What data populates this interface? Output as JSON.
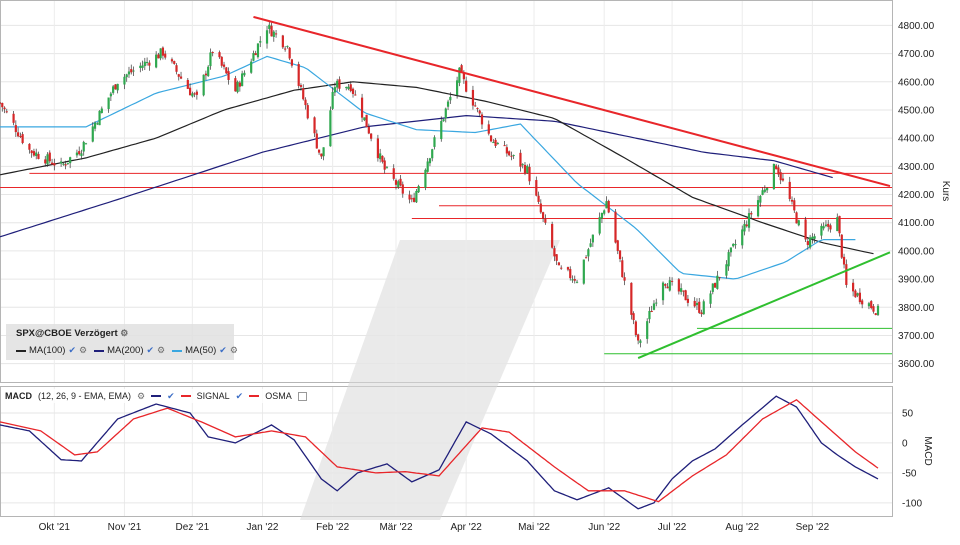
{
  "price_panel": {
    "instrument": "SPX@CBOE Verzögert",
    "axis_label": "Kurs",
    "ma_items": [
      {
        "label": "MA(100)",
        "color": "#222222"
      },
      {
        "label": "MA(200)",
        "color": "#1f1f7a"
      },
      {
        "label": "MA(50)",
        "color": "#3aa7e0"
      }
    ]
  },
  "macd_panel": {
    "label": "MACD",
    "params": "(12, 26, 9 - EMA, EMA)",
    "signal_label": "SIGNAL",
    "osma_label": "OSMA",
    "axis_label": "MACD"
  },
  "chart_data": [
    {
      "type": "candlestick",
      "ylim": [
        3535,
        4890
      ],
      "y_ticks": [
        3600,
        3700,
        3800,
        3900,
        4000,
        4100,
        4200,
        4300,
        4400,
        4500,
        4600,
        4700,
        4800
      ],
      "y_tick_labels": [
        "3600.00",
        "3700.00",
        "3800.00",
        "3900.00",
        "4000.00",
        "4100.00",
        "4200.00",
        "4300.00",
        "4400.00",
        "4500.00",
        "4600.00",
        "4700.00",
        "4800.00"
      ],
      "x_labels": [
        "Okt '21",
        "Nov '21",
        "Dez '21",
        "Jan '22",
        "Feb '22",
        "Mär '22",
        "Apr '22",
        "Mai '22",
        "Jun '22",
        "Jul '22",
        "Aug '22",
        "Sep '22"
      ],
      "x_label_dates": [
        "2021-10-01",
        "2021-11-01",
        "2021-12-01",
        "2022-01-01",
        "2022-02-01",
        "2022-03-01",
        "2022-04-01",
        "2022-05-01",
        "2022-06-01",
        "2022-07-01",
        "2022-08-01",
        "2022-09-01"
      ],
      "date_range": [
        "2021-09-07",
        "2022-09-30"
      ],
      "close_anchors": [
        [
          "2021-09-07",
          4525
        ],
        [
          "2021-09-20",
          4357
        ],
        [
          "2021-10-04",
          4300
        ],
        [
          "2021-10-13",
          4365
        ],
        [
          "2021-10-29",
          4605
        ],
        [
          "2021-11-18",
          4705
        ],
        [
          "2021-11-30",
          4567
        ],
        [
          "2021-12-03",
          4538
        ],
        [
          "2021-12-10",
          4712
        ],
        [
          "2021-12-20",
          4568
        ],
        [
          "2022-01-03",
          4796
        ],
        [
          "2022-01-12",
          4726
        ],
        [
          "2022-01-27",
          4326
        ],
        [
          "2022-02-02",
          4589
        ],
        [
          "2022-02-09",
          4587
        ],
        [
          "2022-02-24",
          4288
        ],
        [
          "2022-03-08",
          4170
        ],
        [
          "2022-03-29",
          4631
        ],
        [
          "2022-04-12",
          4397
        ],
        [
          "2022-04-28",
          4287
        ],
        [
          "2022-05-12",
          3930
        ],
        [
          "2022-05-20",
          3901
        ],
        [
          "2022-06-02",
          4176
        ],
        [
          "2022-06-16",
          3667
        ],
        [
          "2022-06-27",
          3900
        ],
        [
          "2022-07-14",
          3790
        ],
        [
          "2022-08-16",
          4305
        ],
        [
          "2022-08-29",
          4030
        ],
        [
          "2022-09-12",
          4110
        ],
        [
          "2022-09-16",
          3873
        ],
        [
          "2022-09-30",
          3786
        ]
      ],
      "ma50_anchors": [
        [
          "2021-09-07",
          4440
        ],
        [
          "2021-10-15",
          4440
        ],
        [
          "2021-11-15",
          4560
        ],
        [
          "2021-12-15",
          4620
        ],
        [
          "2022-01-03",
          4690
        ],
        [
          "2022-01-20",
          4650
        ],
        [
          "2022-02-15",
          4490
        ],
        [
          "2022-03-10",
          4430
        ],
        [
          "2022-04-05",
          4420
        ],
        [
          "2022-04-25",
          4450
        ],
        [
          "2022-05-20",
          4240
        ],
        [
          "2022-06-15",
          4080
        ],
        [
          "2022-07-05",
          3920
        ],
        [
          "2022-07-29",
          3900
        ],
        [
          "2022-08-20",
          3960
        ],
        [
          "2022-09-05",
          4040
        ],
        [
          "2022-09-20",
          4040
        ]
      ],
      "ma100_anchors": [
        [
          "2021-09-07",
          4270
        ],
        [
          "2021-10-15",
          4330
        ],
        [
          "2021-11-15",
          4400
        ],
        [
          "2021-12-15",
          4500
        ],
        [
          "2022-01-15",
          4570
        ],
        [
          "2022-02-10",
          4600
        ],
        [
          "2022-03-10",
          4580
        ],
        [
          "2022-04-10",
          4530
        ],
        [
          "2022-05-10",
          4470
        ],
        [
          "2022-06-10",
          4330
        ],
        [
          "2022-07-10",
          4190
        ],
        [
          "2022-08-10",
          4100
        ],
        [
          "2022-09-05",
          4030
        ],
        [
          "2022-09-28",
          3990
        ]
      ],
      "ma200_anchors": [
        [
          "2021-09-07",
          4050
        ],
        [
          "2021-11-01",
          4190
        ],
        [
          "2022-01-01",
          4350
        ],
        [
          "2022-02-15",
          4440
        ],
        [
          "2022-04-01",
          4480
        ],
        [
          "2022-05-10",
          4460
        ],
        [
          "2022-06-15",
          4400
        ],
        [
          "2022-07-15",
          4350
        ],
        [
          "2022-08-15",
          4320
        ],
        [
          "2022-09-10",
          4260
        ]
      ],
      "trendlines": [
        {
          "color": "#e8262a",
          "from": [
            "2021-12-28",
            4830
          ],
          "to": [
            "2022-09-30",
            4230
          ]
        },
        {
          "color": "#2fbf2f",
          "from": [
            "2022-06-16",
            3620
          ],
          "to": [
            "2022-09-30",
            3995
          ]
        }
      ],
      "horizontal_lines": [
        {
          "color": "#e8262a",
          "y": 4275,
          "from": "2021-09-20",
          "to": "2022-09-30"
        },
        {
          "color": "#e8262a",
          "y": 4225,
          "from": "2021-09-07",
          "to": "2022-09-30"
        },
        {
          "color": "#e8262a",
          "y": 4160,
          "from": "2022-03-20",
          "to": "2022-09-30"
        },
        {
          "color": "#e8262a",
          "y": 4115,
          "from": "2022-03-08",
          "to": "2022-09-30"
        },
        {
          "color": "#2fbf2f",
          "y": 3725,
          "from": "2022-07-12",
          "to": "2022-09-30"
        },
        {
          "color": "#2fbf2f",
          "y": 3635,
          "from": "2022-06-01",
          "to": "2022-09-30"
        }
      ]
    },
    {
      "type": "line",
      "ylim": [
        -122,
        95
      ],
      "y_ticks": [
        50,
        0,
        -50,
        -100
      ],
      "y_tick_labels": [
        "50",
        "0",
        "-50",
        "-100"
      ],
      "series": [
        {
          "name": "MACD",
          "color": "#1f1f7a",
          "anchors": [
            [
              "2021-09-07",
              30
            ],
            [
              "2021-09-20",
              20
            ],
            [
              "2021-10-04",
              -28
            ],
            [
              "2021-10-13",
              -30
            ],
            [
              "2021-10-29",
              40
            ],
            [
              "2021-11-15",
              65
            ],
            [
              "2021-11-30",
              50
            ],
            [
              "2021-12-08",
              10
            ],
            [
              "2021-12-20",
              0
            ],
            [
              "2022-01-05",
              30
            ],
            [
              "2022-01-15",
              5
            ],
            [
              "2022-01-27",
              -60
            ],
            [
              "2022-02-03",
              -80
            ],
            [
              "2022-02-12",
              -50
            ],
            [
              "2022-02-25",
              -35
            ],
            [
              "2022-03-08",
              -65
            ],
            [
              "2022-03-20",
              -45
            ],
            [
              "2022-04-01",
              35
            ],
            [
              "2022-04-12",
              15
            ],
            [
              "2022-04-28",
              -30
            ],
            [
              "2022-05-10",
              -80
            ],
            [
              "2022-05-20",
              -95
            ],
            [
              "2022-06-03",
              -75
            ],
            [
              "2022-06-16",
              -110
            ],
            [
              "2022-06-23",
              -100
            ],
            [
              "2022-07-01",
              -60
            ],
            [
              "2022-07-10",
              -30
            ],
            [
              "2022-07-20",
              -10
            ],
            [
              "2022-08-01",
              30
            ],
            [
              "2022-08-16",
              78
            ],
            [
              "2022-08-25",
              60
            ],
            [
              "2022-09-05",
              0
            ],
            [
              "2022-09-12",
              -20
            ],
            [
              "2022-09-20",
              -40
            ],
            [
              "2022-09-30",
              -60
            ]
          ]
        },
        {
          "name": "SIGNAL",
          "color": "#e8262a",
          "anchors": [
            [
              "2021-09-07",
              35
            ],
            [
              "2021-09-25",
              20
            ],
            [
              "2021-10-10",
              -20
            ],
            [
              "2021-10-20",
              -15
            ],
            [
              "2021-11-05",
              40
            ],
            [
              "2021-11-20",
              58
            ],
            [
              "2021-12-05",
              35
            ],
            [
              "2021-12-20",
              10
            ],
            [
              "2022-01-05",
              20
            ],
            [
              "2022-01-20",
              10
            ],
            [
              "2022-02-03",
              -40
            ],
            [
              "2022-02-20",
              -50
            ],
            [
              "2022-03-05",
              -48
            ],
            [
              "2022-03-20",
              -55
            ],
            [
              "2022-04-08",
              25
            ],
            [
              "2022-04-20",
              18
            ],
            [
              "2022-05-10",
              -40
            ],
            [
              "2022-05-25",
              -80
            ],
            [
              "2022-06-10",
              -80
            ],
            [
              "2022-06-25",
              -98
            ],
            [
              "2022-07-10",
              -55
            ],
            [
              "2022-07-25",
              -20
            ],
            [
              "2022-08-10",
              40
            ],
            [
              "2022-08-25",
              72
            ],
            [
              "2022-09-08",
              25
            ],
            [
              "2022-09-20",
              -15
            ],
            [
              "2022-09-30",
              -42
            ]
          ]
        }
      ]
    }
  ]
}
